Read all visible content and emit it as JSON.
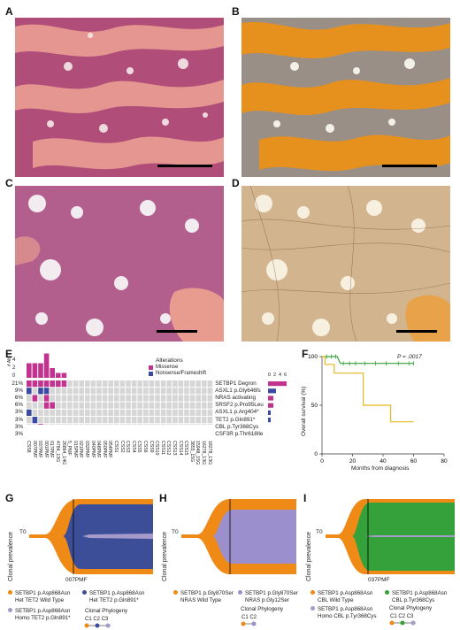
{
  "panels": {
    "A": "A",
    "B": "B",
    "C": "C",
    "D": "D",
    "E": "E",
    "F": "F",
    "G": "G",
    "H": "H",
    "I": "I"
  },
  "oncoprint": {
    "legend_title": "Alterations",
    "legend_missense": "Missense",
    "legend_nonsense": "Nonsense/Frameshift",
    "top_axis": [
      "4",
      "2",
      "0"
    ],
    "axis_label": "# Alt",
    "right_axis": [
      "0",
      "2",
      "4",
      "6"
    ],
    "rows": [
      {
        "pct": "21%",
        "gene": "SETBP1 Degron"
      },
      {
        "pct": "9%",
        "gene": "ASXL1 p.Gly646fs"
      },
      {
        "pct": "6%",
        "gene": "NRAS activating"
      },
      {
        "pct": "6%",
        "gene": "SRSF2 p.Pro95Leu"
      },
      {
        "pct": "3%",
        "gene": "ASXL1 p.Arg404*"
      },
      {
        "pct": "3%",
        "gene": "TET2 p.Gln891*"
      },
      {
        "pct": "3%",
        "gene": "CBL p.Tyr368Cys"
      },
      {
        "pct": "3%",
        "gene": "CSF3R p.Thr618Ile"
      }
    ],
    "samples": [
      "CSS8",
      "007PMF",
      "037PMF",
      "001PMF",
      "017PMF",
      "4784_13G",
      "26864_14G",
      "5_PMF",
      "015PMF",
      "021PMF",
      "032PMF",
      "040PMF",
      "048PMF",
      "050PMF",
      "054PMF",
      "CSS1",
      "CSS2",
      "CSS3",
      "CSS4",
      "CSS5",
      "CSS6",
      "CSS9",
      "CSS10",
      "CSS11",
      "CSS12",
      "CSS13",
      "CSS14",
      "CSS15",
      "3855_15G",
      "15948_15G",
      "16278_13G",
      "18278_13G"
    ],
    "colors": {
      "missense": "#c2328f",
      "nonsense": "#3b4ba3",
      "empty": "#d6d6d6"
    }
  },
  "chart_data": {
    "type": "line",
    "title": "",
    "annotation": "P = .0017",
    "xlabel": "Months from diagnosis",
    "ylabel": "Overall survival (%)",
    "xlim": [
      0,
      80
    ],
    "ylim": [
      0,
      100
    ],
    "xticks": [
      "0",
      "20",
      "40",
      "60",
      "80"
    ],
    "yticks": [
      "0",
      "50",
      "100"
    ],
    "series": [
      {
        "color": "#3aa33a",
        "x": [
          0,
          10,
          12,
          60
        ],
        "y": [
          100,
          100,
          93,
          93
        ],
        "censor_x": [
          3,
          6,
          9,
          14,
          18,
          22,
          28,
          35,
          42,
          50,
          57,
          60
        ]
      },
      {
        "color": "#e8b820",
        "x": [
          0,
          2,
          2,
          8,
          8,
          27,
          27,
          45,
          45,
          60
        ],
        "y": [
          100,
          100,
          92,
          92,
          83,
          83,
          50,
          50,
          33,
          33
        ],
        "censor_x": []
      }
    ]
  },
  "fish_plots": [
    {
      "id": "G",
      "t0": "T0",
      "ylabel": "Clonal prevalence",
      "sample": "007PMF",
      "legend": [
        {
          "color": "#ef8a17",
          "text1": "SETBP1 p.Asp868Asn",
          "text2": "Het TET2 Wild Type"
        },
        {
          "color": "#3d4e99",
          "text1": "SETBP1 p.Asp868Asn",
          "text2": "Het TET2 p.Gln891*"
        },
        {
          "color": "#a59ac9",
          "text1": "SETBP1 p.Asp868Asn",
          "text2": "Homo TET2 p.Gln891*"
        }
      ],
      "phylogeny_title": "Clonal Phylogeny",
      "phylogeny_labels": [
        "C1",
        "C2",
        "C3"
      ]
    },
    {
      "id": "H",
      "t0": "T0",
      "ylabel": "Clonal prevalence",
      "sample": "",
      "legend": [
        {
          "color": "#ef8a17",
          "text1": "SETBP1 p.Gly870Ser",
          "text2": "NRAS Wild Type"
        },
        {
          "color": "#9b8fcd",
          "text1": "SETBP1 p.Gly870Ser",
          "text2": "NRAS p.Gly12Ser"
        }
      ],
      "phylogeny_title": "Clonal Phylogeny",
      "phylogeny_labels": [
        "C1",
        "C2"
      ]
    },
    {
      "id": "I",
      "t0": "T0",
      "ylabel": "Clonal prevalence",
      "sample": "037PMF",
      "legend": [
        {
          "color": "#ef8a17",
          "text1": "SETBP1 p.Asp868Asn",
          "text2": "CBL Wild Type"
        },
        {
          "color": "#34a13a",
          "text1": "SETBP1 p.Asp868Asn",
          "text2": "CBL p.Tyr368Cys"
        },
        {
          "color": "#a59ac9",
          "text1": "SETBP1 p.Asp868Asn",
          "text2": "Homo CBL p.Tyr368Cys"
        }
      ],
      "phylogeny_title": "Clonal Phylogeny",
      "phylogeny_labels": [
        "C1",
        "C2",
        "C3"
      ]
    }
  ]
}
